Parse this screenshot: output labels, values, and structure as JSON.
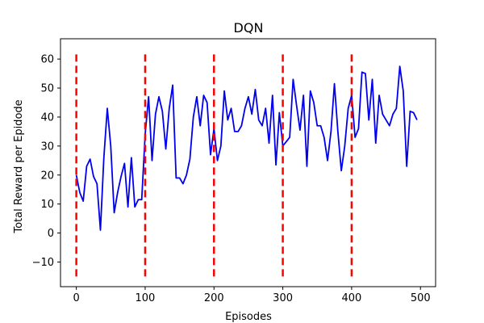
{
  "chart_data": {
    "type": "line",
    "title": "DQN",
    "xlabel": "Episodes",
    "ylabel": "Total Reward per Epidode",
    "xlim": [
      -23,
      522
    ],
    "ylim": [
      -18.5,
      67
    ],
    "xticks": [
      0,
      100,
      200,
      300,
      400,
      500
    ],
    "yticks": [
      -10,
      0,
      10,
      20,
      30,
      40,
      50,
      60
    ],
    "grid": false,
    "legend": "none",
    "series": [
      {
        "color": "#0000ee",
        "x": [
          0,
          5,
          10,
          15,
          20,
          25,
          30,
          35,
          40,
          45,
          50,
          55,
          60,
          65,
          70,
          75,
          80,
          85,
          90,
          95,
          100,
          105,
          110,
          115,
          120,
          125,
          130,
          135,
          140,
          145,
          150,
          155,
          160,
          165,
          170,
          175,
          180,
          185,
          190,
          195,
          200,
          205,
          210,
          215,
          220,
          225,
          230,
          235,
          240,
          245,
          250,
          255,
          260,
          265,
          270,
          275,
          280,
          285,
          290,
          295,
          300,
          305,
          310,
          315,
          320,
          325,
          330,
          335,
          340,
          345,
          350,
          355,
          360,
          365,
          370,
          375,
          380,
          385,
          390,
          395,
          400,
          405,
          410,
          415,
          420,
          425,
          430,
          435,
          440,
          445,
          450,
          455,
          460,
          465,
          470,
          475,
          480,
          485,
          490,
          495
        ],
        "y": [
          20,
          14,
          11,
          23,
          25.5,
          19.5,
          17,
          1,
          26,
          43,
          30,
          7,
          14,
          19.5,
          24,
          9,
          26,
          9,
          11.5,
          11.5,
          34,
          47,
          25,
          41,
          47,
          42,
          29,
          43,
          51,
          19,
          19,
          17,
          20,
          25.5,
          40,
          47,
          37,
          47.5,
          45,
          27,
          36,
          25,
          30,
          49,
          39,
          43,
          35,
          35,
          37,
          43,
          47,
          41,
          49.5,
          39,
          37,
          43,
          31,
          47.5,
          23.5,
          41.5,
          30,
          31.5,
          33,
          53,
          44,
          35.5,
          47.5,
          23,
          49,
          45,
          37,
          37,
          33,
          25,
          35,
          51.5,
          35,
          21.5,
          30,
          43,
          47.5,
          33,
          36,
          55.5,
          55,
          39,
          53,
          31,
          47.5,
          41,
          39,
          37,
          41,
          43,
          57.5,
          49,
          23,
          42,
          41.5,
          39
        ]
      }
    ],
    "markers": {
      "color": "#ff0000",
      "style": "dashed",
      "x": [
        0,
        100,
        200,
        300,
        400
      ],
      "y_from": -15,
      "y_to": 63
    }
  }
}
